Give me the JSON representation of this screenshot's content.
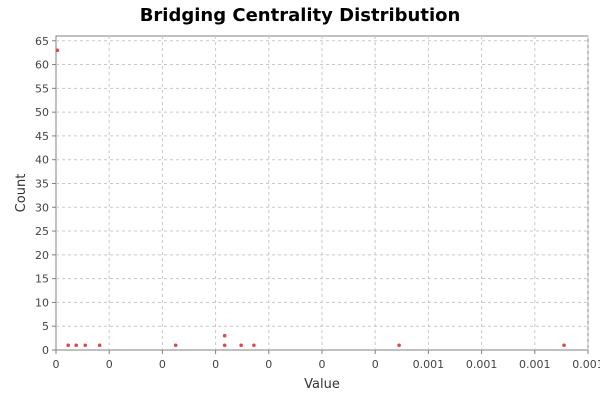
{
  "chart_data": {
    "type": "scatter",
    "title": "Bridging Centrality Distribution",
    "xlabel": "Value",
    "ylabel": "Count",
    "xlim": [
      0,
      0.001
    ],
    "ylim": [
      0,
      66
    ],
    "x_ticks": [
      0,
      0.0001,
      0.0002,
      0.0003,
      0.0004,
      0.0005,
      0.0006,
      0.0007,
      0.0008,
      0.0009,
      0.001
    ],
    "x_tick_labels": [
      "0",
      "0",
      "0",
      "0",
      "0",
      "0",
      "0",
      "0.001",
      "0.001",
      "0.001",
      "0.001"
    ],
    "y_ticks": [
      0,
      5,
      10,
      15,
      20,
      25,
      30,
      35,
      40,
      45,
      50,
      55,
      60,
      65
    ],
    "y_tick_labels": [
      "0",
      "5",
      "10",
      "15",
      "20",
      "25",
      "30",
      "35",
      "40",
      "45",
      "50",
      "55",
      "60",
      "65"
    ],
    "grid": true,
    "marker_color": "#e0474c",
    "points": [
      {
        "x": 2.5e-06,
        "y": 63
      },
      {
        "x": 2.3e-05,
        "y": 1
      },
      {
        "x": 3.8e-05,
        "y": 1
      },
      {
        "x": 5.5e-05,
        "y": 1
      },
      {
        "x": 8.2e-05,
        "y": 1
      },
      {
        "x": 0.000225,
        "y": 1
      },
      {
        "x": 0.000317,
        "y": 3
      },
      {
        "x": 0.000317,
        "y": 1
      },
      {
        "x": 0.000348,
        "y": 1
      },
      {
        "x": 0.000372,
        "y": 1
      },
      {
        "x": 0.000645,
        "y": 1
      },
      {
        "x": 0.000955,
        "y": 1
      }
    ]
  }
}
